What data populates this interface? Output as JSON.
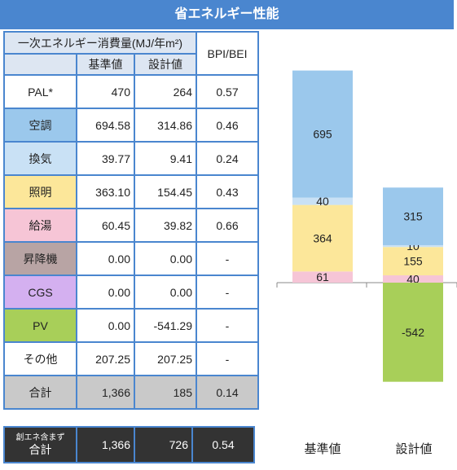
{
  "title": "省エネルギー性能",
  "table": {
    "header_main": "一次エネルギー消費量(MJ/年m²)",
    "header_ratio": "BPI/BEI",
    "col_standard": "基準値",
    "col_design": "設計値",
    "rows": [
      {
        "label": "PAL*",
        "standard": "470",
        "design": "264",
        "ratio": "0.57",
        "color": "#ffffff"
      },
      {
        "label": "空調",
        "standard": "694.58",
        "design": "314.86",
        "ratio": "0.46",
        "color": "#9bc8ec"
      },
      {
        "label": "換気",
        "standard": "39.77",
        "design": "9.41",
        "ratio": "0.24",
        "color": "#c9e1f5"
      },
      {
        "label": "照明",
        "standard": "363.10",
        "design": "154.45",
        "ratio": "0.43",
        "color": "#fce79a"
      },
      {
        "label": "給湯",
        "standard": "60.45",
        "design": "39.82",
        "ratio": "0.66",
        "color": "#f6c5d6"
      },
      {
        "label": "昇降機",
        "standard": "0.00",
        "design": "0.00",
        "ratio": "-",
        "color": "#b8a4a4"
      },
      {
        "label": "CGS",
        "standard": "0.00",
        "design": "0.00",
        "ratio": "-",
        "color": "#d4b0f0"
      },
      {
        "label": "PV",
        "standard": "0.00",
        "design": "-541.29",
        "ratio": "-",
        "color": "#a8cf59"
      },
      {
        "label": "その他",
        "standard": "207.25",
        "design": "207.25",
        "ratio": "-",
        "color": "#ffffff"
      }
    ],
    "total": {
      "label": "合計",
      "standard": "1,366",
      "design": "185",
      "ratio": "0.14"
    }
  },
  "net_total": {
    "label_small": "創エネ含まず",
    "label": "合計",
    "standard": "1,366",
    "design": "726",
    "ratio": "0.54"
  },
  "chart_data": {
    "type": "bar",
    "stacked": true,
    "categories": [
      "基準値",
      "設計値"
    ],
    "series": [
      {
        "name": "給湯",
        "values": [
          61,
          40
        ],
        "labels": [
          "61",
          "40"
        ],
        "color": "#f6c5d6"
      },
      {
        "name": "照明",
        "values": [
          364,
          155
        ],
        "labels": [
          "364",
          "155"
        ],
        "color": "#fce79a"
      },
      {
        "name": "換気",
        "values": [
          40,
          10
        ],
        "labels": [
          "40",
          "10"
        ],
        "color": "#c9e1f5"
      },
      {
        "name": "空調",
        "values": [
          695,
          315
        ],
        "labels": [
          "695",
          "315"
        ],
        "color": "#9bc8ec"
      },
      {
        "name": "PV",
        "values": [
          0,
          -542
        ],
        "labels": [
          "",
          "-542"
        ],
        "color": "#a8cf59"
      }
    ],
    "ylim": [
      -600,
      1200
    ],
    "grid": false,
    "legend": "none"
  }
}
